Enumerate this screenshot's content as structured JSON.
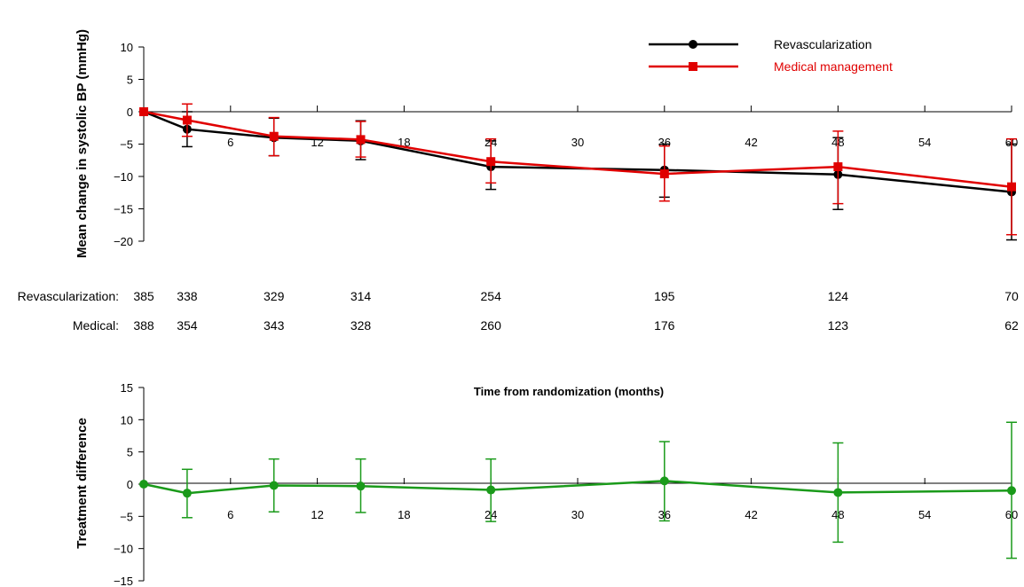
{
  "chart_data": [
    {
      "type": "line",
      "ylabel": "Mean change in systolic BP (mmHg)",
      "xlabel": "",
      "xlim": [
        0,
        60
      ],
      "ylim": [
        -20,
        10
      ],
      "x_ticks": [
        6,
        12,
        18,
        24,
        30,
        36,
        42,
        48,
        54,
        60
      ],
      "y_ticks": [
        10,
        5,
        0,
        -5,
        -10,
        -15,
        -20
      ],
      "legend_position": "top-right",
      "series": [
        {
          "name": "Revascularization",
          "color": "#000000",
          "marker": "circle",
          "x": [
            0,
            3,
            9,
            15,
            24,
            36,
            48,
            60
          ],
          "y": [
            0,
            -2.7,
            -4.0,
            -4.5,
            -8.5,
            -9.0,
            -9.7,
            -12.4
          ],
          "err_low": [
            0,
            -5.4,
            -6.8,
            -7.4,
            -12.0,
            -13.2,
            -15.1,
            -19.8
          ],
          "err_high": [
            0,
            0,
            -1.0,
            -1.4,
            -4.5,
            -5.0,
            -4.0,
            -5.0
          ]
        },
        {
          "name": "Medical management",
          "color": "#e00000",
          "marker": "square",
          "x": [
            0,
            3,
            9,
            15,
            24,
            36,
            48,
            60
          ],
          "y": [
            0,
            -1.3,
            -3.8,
            -4.3,
            -7.7,
            -9.6,
            -8.5,
            -11.6
          ],
          "err_low": [
            0,
            -3.8,
            -6.8,
            -7.0,
            -11.0,
            -13.8,
            -14.2,
            -19.0
          ],
          "err_high": [
            0,
            1.2,
            -0.9,
            -1.5,
            -4.2,
            -5.3,
            -3.0,
            -4.2
          ]
        }
      ]
    },
    {
      "type": "line",
      "ylabel": "Treatment difference",
      "xlabel": "Time from randomization (months)",
      "xlim": [
        0,
        60
      ],
      "ylim": [
        -15,
        15
      ],
      "x_ticks": [
        6,
        12,
        18,
        24,
        30,
        36,
        42,
        48,
        54,
        60
      ],
      "y_ticks": [
        15,
        10,
        5,
        0,
        -5,
        -10,
        -15
      ],
      "series": [
        {
          "color": "#1a9a1a",
          "marker": "circle",
          "x": [
            0,
            3,
            9,
            15,
            24,
            36,
            48,
            60
          ],
          "y": [
            0,
            -1.4,
            -0.2,
            -0.3,
            -0.9,
            0.5,
            -1.3,
            -1.0
          ],
          "err_low": [
            0,
            -5.2,
            -4.3,
            -4.4,
            -5.8,
            -5.7,
            -9.0,
            -11.5
          ],
          "err_high": [
            0,
            2.3,
            3.9,
            3.9,
            3.9,
            6.6,
            6.4,
            9.6
          ]
        }
      ]
    }
  ],
  "risk_table": {
    "x": [
      0,
      3,
      9,
      15,
      24,
      36,
      48,
      60
    ],
    "rows": [
      {
        "label": "Revascularization:",
        "values": [
          "385",
          "338",
          "329",
          "314",
          "254",
          "195",
          "124",
          "70"
        ]
      },
      {
        "label": "Medical:",
        "values": [
          "388",
          "354",
          "343",
          "328",
          "260",
          "176",
          "123",
          "62"
        ]
      }
    ]
  }
}
